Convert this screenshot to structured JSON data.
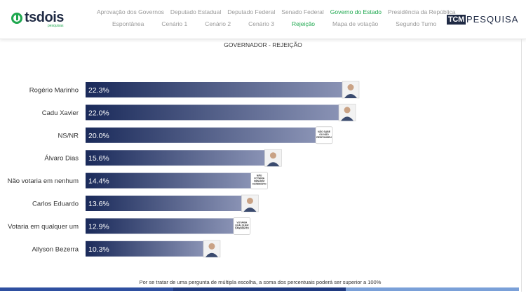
{
  "brand_left": {
    "name": "tsdois",
    "tagline": "pesquisas"
  },
  "brand_right": {
    "tcm": "TCM",
    "pesquisa": "PESQUISA"
  },
  "nav": {
    "row1": [
      {
        "label": "Aprovação dos Governos",
        "active": false
      },
      {
        "label": "Deputado Estadual",
        "active": false
      },
      {
        "label": "Deputado Federal",
        "active": false
      },
      {
        "label": "Senado Federal",
        "active": false
      },
      {
        "label": "Governo do Estado",
        "active": true
      },
      {
        "label": "Presidência da República",
        "active": false
      }
    ],
    "row2": [
      {
        "label": "Espontânea",
        "active": false
      },
      {
        "label": "Cenário 1",
        "active": false
      },
      {
        "label": "Cenário 2",
        "active": false
      },
      {
        "label": "Cenário 3",
        "active": false
      },
      {
        "label": "Rejeição",
        "active": true
      },
      {
        "label": "Mapa de votação",
        "active": false
      },
      {
        "label": "Segundo Turno",
        "active": false
      }
    ]
  },
  "chart_data": {
    "type": "bar",
    "orientation": "horizontal",
    "title": "GOVERNADOR - REJEIÇÃO",
    "categories": [
      "Rogério Marinho",
      "Cadu Xavier",
      "NS/NR",
      "Álvaro Dias",
      "Não votaria em nenhum",
      "Carlos Eduardo",
      "Votaria em qualquer um",
      "Allyson Bezerra"
    ],
    "values": [
      22.3,
      22.0,
      20.0,
      15.6,
      14.4,
      13.6,
      12.9,
      10.3
    ],
    "value_labels": [
      "22.3%",
      "22.0%",
      "20.0%",
      "15.6%",
      "14.4%",
      "13.6%",
      "12.9%",
      "10.3%"
    ],
    "markers": [
      {
        "kind": "photo",
        "text": ""
      },
      {
        "kind": "photo",
        "text": ""
      },
      {
        "kind": "badge",
        "text": "NÃO SABE OU NÃO RESPONDEU"
      },
      {
        "kind": "photo",
        "text": ""
      },
      {
        "kind": "badge",
        "text": "NÃO VOTARIA NENHUM CANDIDATO"
      },
      {
        "kind": "photo",
        "text": ""
      },
      {
        "kind": "badge",
        "text": "VOTARIA QUALQUER CANDIDATO"
      },
      {
        "kind": "photo",
        "text": ""
      }
    ],
    "bar_color_start": "#1a2a5a",
    "bar_color_end": "#8a93b5",
    "xlim": [
      0,
      23
    ]
  },
  "footnote": "Por se tratar de uma pergunta de múltipla escolha, a soma dos percentuais poderá ser superior a 100%",
  "bottom_bar_colors": [
    "#2e4fa0",
    "#1f3a80",
    "#7aa0d8"
  ]
}
